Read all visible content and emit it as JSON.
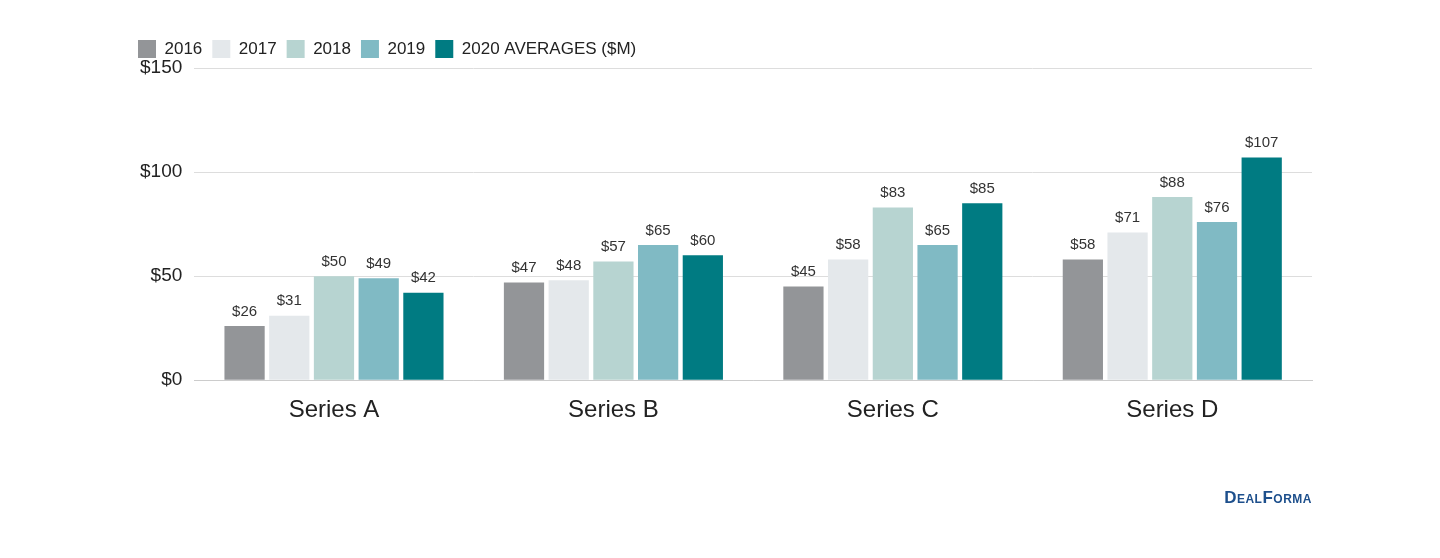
{
  "chart_data": {
    "type": "bar",
    "categories": [
      "Series A",
      "Series B",
      "Series C",
      "Series D"
    ],
    "series": [
      {
        "name": "2016",
        "color": "#939598",
        "values": [
          26,
          47,
          45,
          58
        ],
        "value_labels": [
          "$26",
          "$47",
          "$45",
          "$58"
        ]
      },
      {
        "name": "2017",
        "color": "#e4e8eb",
        "values": [
          31,
          48,
          58,
          71
        ],
        "value_labels": [
          "$31",
          "$48",
          "$58",
          "$71"
        ]
      },
      {
        "name": "2018",
        "color": "#b7d4d1",
        "values": [
          50,
          57,
          83,
          88
        ],
        "value_labels": [
          "$50",
          "$57",
          "$83",
          "$88"
        ]
      },
      {
        "name": "2019",
        "color": "#80bac4",
        "values": [
          49,
          65,
          65,
          76
        ],
        "value_labels": [
          "$49",
          "$65",
          "$65",
          "$76"
        ]
      },
      {
        "name": "2020 AVERAGES ($M)",
        "color": "#007b82",
        "values": [
          42,
          60,
          85,
          107
        ],
        "value_labels": [
          "$42",
          "$60",
          "$85",
          "$107"
        ]
      }
    ],
    "ylim": [
      0,
      150
    ],
    "yticks": [
      {
        "value": 0,
        "label": "$0"
      },
      {
        "value": 50,
        "label": "$50"
      },
      {
        "value": 100,
        "label": "$100"
      },
      {
        "value": 150,
        "label": "$150"
      }
    ],
    "grid": true,
    "legend": "top-left",
    "data_labels": true,
    "annotations": [
      "DealForma"
    ]
  }
}
